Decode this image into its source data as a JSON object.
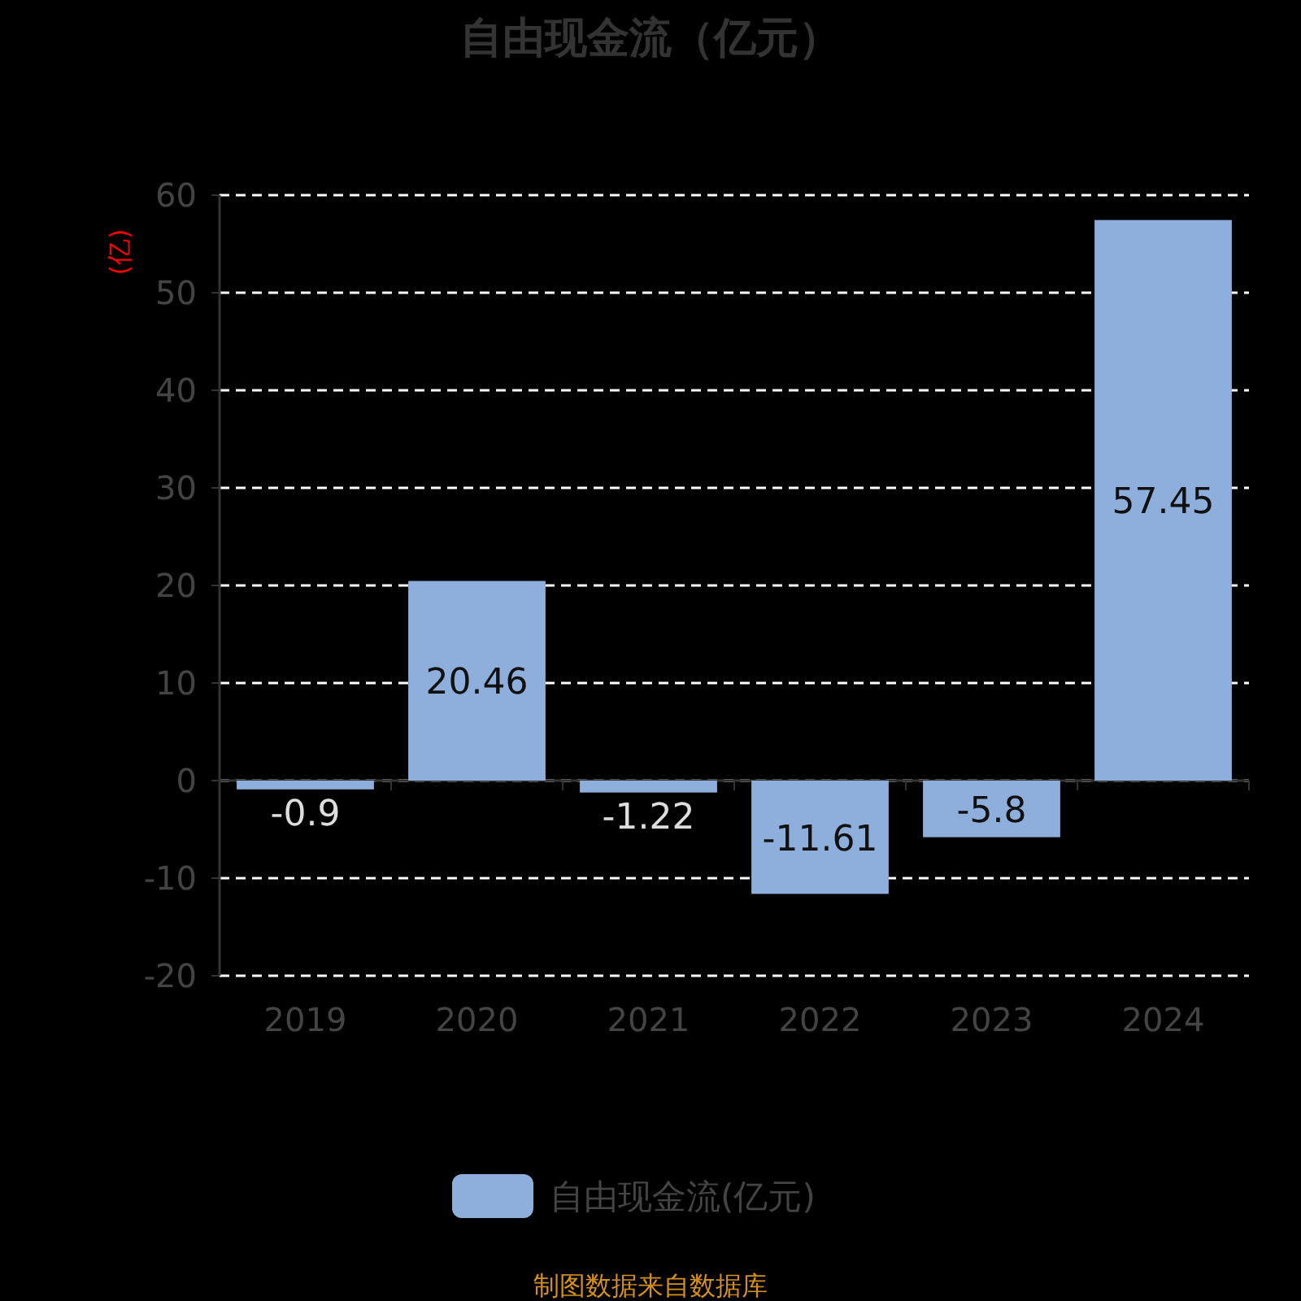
{
  "chart_data": {
    "type": "bar",
    "title": "自由现金流（亿元）",
    "ylabel": "(亿)",
    "categories": [
      "2019",
      "2020",
      "2021",
      "2022",
      "2023",
      "2024"
    ],
    "series": [
      {
        "name": "自由现金流(亿元)",
        "color": "#8eafdb",
        "values": [
          -0.9,
          20.46,
          -1.22,
          -11.61,
          -5.8,
          57.45
        ]
      }
    ],
    "ylim": [
      -20,
      60
    ],
    "yticks": [
      -20,
      -10,
      0,
      10,
      20,
      30,
      40,
      50,
      60
    ],
    "grid": "y",
    "line_style": "dashed",
    "legend": "bottom",
    "data_labels": true,
    "annotations": [
      "制图数据来自数据库"
    ]
  }
}
